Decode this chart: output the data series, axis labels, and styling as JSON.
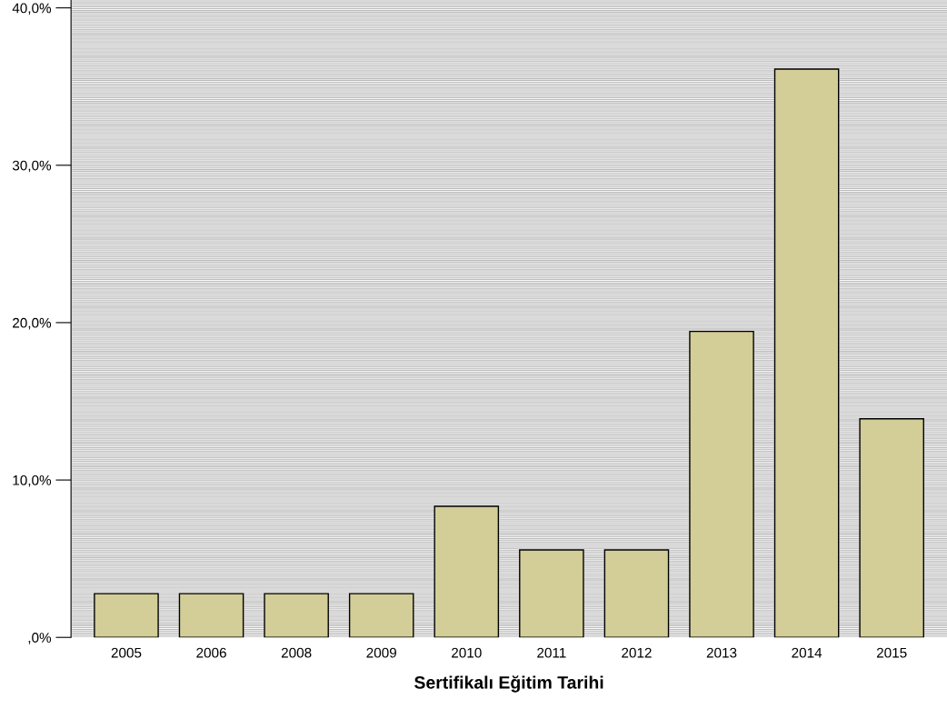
{
  "chart_data": {
    "type": "bar",
    "xlabel": "Sertifikalı Eğitim Tarihi",
    "categories": [
      "2005",
      "2006",
      "2008",
      "2009",
      "2010",
      "2011",
      "2012",
      "2013",
      "2014",
      "2015"
    ],
    "values": [
      2.78,
      2.78,
      2.78,
      2.78,
      8.33,
      5.56,
      5.56,
      19.44,
      36.11,
      13.89
    ],
    "color": "#d3cd98",
    "ylim": [
      0,
      40.5
    ],
    "yticks": [
      {
        "value": 0,
        "label": ",0%"
      },
      {
        "value": 10,
        "label": "10,0%"
      },
      {
        "value": 20,
        "label": "20,0%"
      },
      {
        "value": 30,
        "label": "30,0%"
      },
      {
        "value": 40,
        "label": "40,0%"
      }
    ],
    "grid": false
  }
}
